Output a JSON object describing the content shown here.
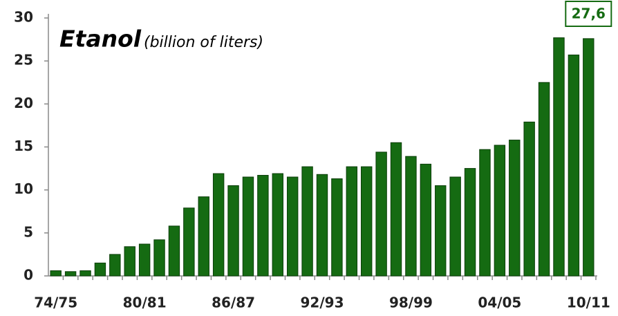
{
  "chart_data": {
    "type": "bar",
    "title": "Etanol",
    "subtitle": "(billion of liters)",
    "categories": [
      "74/75",
      null,
      null,
      null,
      null,
      null,
      "80/81",
      null,
      null,
      null,
      null,
      null,
      "86/87",
      null,
      null,
      null,
      null,
      null,
      "92/93",
      null,
      null,
      null,
      null,
      null,
      "98/99",
      null,
      null,
      null,
      null,
      null,
      "04/05",
      null,
      null,
      null,
      null,
      null,
      "10/11"
    ],
    "values": [
      0.6,
      0.5,
      0.6,
      1.5,
      2.5,
      3.4,
      3.7,
      4.2,
      5.8,
      7.9,
      9.2,
      11.9,
      10.5,
      11.5,
      11.7,
      11.9,
      11.5,
      12.7,
      11.8,
      11.3,
      12.7,
      12.7,
      14.4,
      15.5,
      13.9,
      13.0,
      10.5,
      11.5,
      12.5,
      14.7,
      15.2,
      15.8,
      17.9,
      22.5,
      27.7,
      25.7,
      27.6
    ],
    "value_labels": [
      null,
      null,
      null,
      null,
      null,
      null,
      null,
      null,
      null,
      null,
      null,
      null,
      null,
      null,
      null,
      null,
      null,
      null,
      null,
      null,
      null,
      null,
      null,
      null,
      null,
      null,
      null,
      null,
      null,
      null,
      null,
      null,
      null,
      null,
      null,
      null,
      "27,6"
    ],
    "color": "#156b12",
    "ylim": [
      0,
      30
    ],
    "yticks": [
      0,
      5,
      10,
      15,
      20,
      25,
      30
    ],
    "grid": false
  }
}
